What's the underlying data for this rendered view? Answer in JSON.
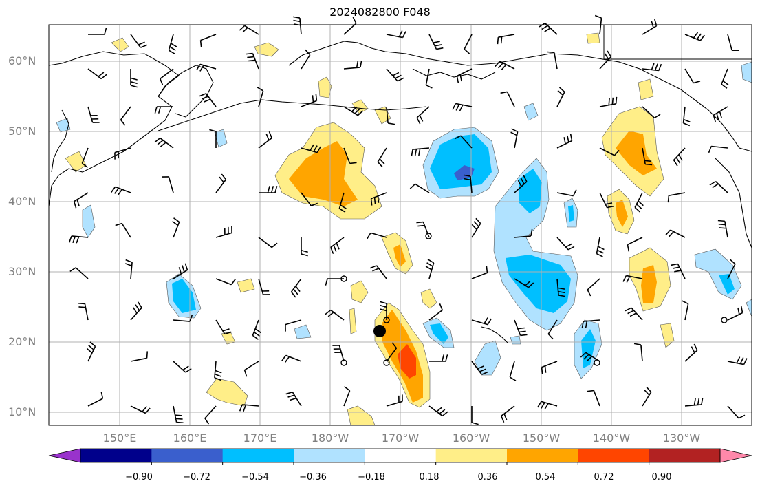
{
  "title": "2024082800 F048",
  "lat_labels": [
    "60°N",
    "50°N",
    "40°N",
    "30°N",
    "20°N",
    "10°N"
  ],
  "lon_labels": [
    "150°E",
    "160°E",
    "170°E",
    "180°W",
    "170°W",
    "160°W",
    "150°W",
    "140°W",
    "130°W"
  ],
  "colorbar": {
    "labels": [
      "−0.90",
      "−0.72",
      "−0.54",
      "−0.36",
      "−0.18",
      "0.18",
      "0.36",
      "0.54",
      "0.72",
      "0.90"
    ],
    "colors": [
      "#9932cc",
      "#00008b",
      "#3a5fcd",
      "#00bfff",
      "#b0e2ff",
      "#ffffff",
      "#ffee88",
      "#ffa500",
      "#ff4500",
      "#b22222",
      "#ff88aa"
    ]
  },
  "colors": {
    "grid": "#b0b0b0",
    "coast": "#000000",
    "label": "#808080"
  },
  "marker": "storm-center-dot"
}
